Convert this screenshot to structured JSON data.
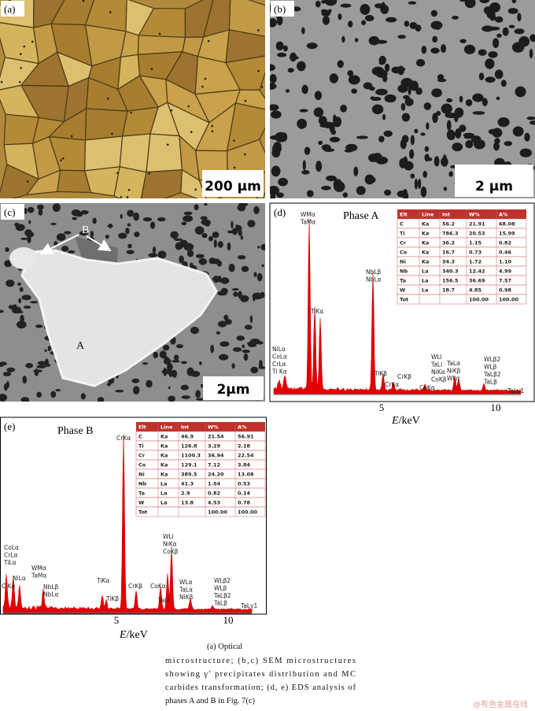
{
  "panels": {
    "a": {
      "label": "(a)",
      "scale_bar": "200 μm"
    },
    "b": {
      "label": "(b)",
      "scale_bar": "2 μm"
    },
    "c": {
      "label": "(c)",
      "scale_bar": "2μm",
      "annotations": [
        "B",
        "A"
      ]
    },
    "d": {
      "label": "(d)",
      "title": "Phase A",
      "table": {
        "header": [
          "Elt",
          "Line",
          "Int",
          "W%",
          "A%"
        ],
        "rows": [
          [
            "C",
            "Ka",
            "56.2",
            "21.91",
            "68.08"
          ],
          [
            "Ti",
            "Ka",
            "786.3",
            "20.53",
            "15.99"
          ],
          [
            "Cr",
            "Ka",
            "36.2",
            "1.15",
            "0.82"
          ],
          [
            "Co",
            "Ka",
            "16.7",
            "0.73",
            "0.46"
          ],
          [
            "Ni",
            "Ka",
            "34.3",
            "1.72",
            "1.10"
          ],
          [
            "Nb",
            "La",
            "340.3",
            "12.42",
            "4.99"
          ],
          [
            "Ta",
            "La",
            "156.5",
            "36.69",
            "7.57"
          ],
          [
            "W",
            "La",
            "18.7",
            "4.85",
            "0.98"
          ]
        ],
        "total": {
          "label": "Tot",
          "w": "100.00",
          "a": "100.00"
        }
      },
      "peaks": [
        [
          "WMα",
          "TaMα"
        ],
        [
          "TiKα"
        ],
        [
          "NbLβ",
          "NbLα"
        ],
        [
          "NiLα",
          "CoLα",
          "CrLα",
          "Ti Kα"
        ],
        [
          "TiKβ"
        ],
        [
          "CrKα"
        ],
        [
          "CrKβ"
        ],
        [
          "CoKα"
        ],
        [
          "WLl",
          "TaLl",
          "NiKα",
          "CoKβ"
        ],
        [
          "TaLα",
          "NiKβ",
          "WLα"
        ],
        [
          "WLβ2",
          "WLβ",
          "TaLβ2",
          "TaLβ"
        ],
        [
          "TaLγ1"
        ]
      ],
      "x_ticks": [
        "5",
        "10"
      ],
      "x_label": {
        "symbol": "E",
        "unit": "/keV"
      }
    },
    "e": {
      "label": "(e)",
      "title": "Phase B",
      "table": {
        "header": [
          "Elt",
          "Line",
          "Int",
          "W%",
          "A%"
        ],
        "rows": [
          [
            "C",
            "Ka",
            "46.9",
            "21.54",
            "56.91"
          ],
          [
            "Ti",
            "Ka",
            "126.8",
            "3.29",
            "2.18"
          ],
          [
            "Cr",
            "Ka",
            "1100.3",
            "36.94",
            "22.54"
          ],
          [
            "Co",
            "Ka",
            "129.1",
            "7.12",
            "3.84"
          ],
          [
            "Ni",
            "Ka",
            "389.5",
            "24.20",
            "13.08"
          ],
          [
            "Nb",
            "La",
            "41.3",
            "1.54",
            "0.53"
          ],
          [
            "Ta",
            "La",
            "2.9",
            "0.82",
            "0.14"
          ],
          [
            "W",
            "La",
            "13.8",
            "4.53",
            "0.78"
          ]
        ],
        "total": {
          "label": "Tot",
          "w": "100.00",
          "a": "100.00"
        }
      },
      "peaks": [
        [
          "CoLα",
          "CrLα",
          "TiLα"
        ],
        [
          "NiLα"
        ],
        [
          "C Kα"
        ],
        [
          "WMα",
          "TaMα"
        ],
        [
          "NbLβ",
          "NbLα"
        ],
        [
          "CrKα"
        ],
        [
          "TiKα"
        ],
        [
          "TiKβ"
        ],
        [
          "CrKβ"
        ],
        [
          "WLl",
          "NiKα",
          "CoKβ"
        ],
        [
          "CoKα"
        ],
        [
          "TaLl"
        ],
        [
          "WLα",
          "TaLα",
          "NiKβ"
        ],
        [
          "WLβ2",
          "WLβ",
          "TaLβ2",
          "TaLβ"
        ],
        [
          "TaLγ1"
        ]
      ],
      "x_ticks": [
        "5",
        "10"
      ],
      "x_label": {
        "symbol": "E",
        "unit": "/keV"
      }
    }
  },
  "caption": [
    "(a) Optical",
    "microstructure; (b,c) SEM microstructures",
    "showing γ′ precipitates distribution and MC",
    "carbides transformation; (d, e) EDS analysis of",
    "phases A and B in Fig. 7(c)"
  ],
  "watermark": "@有色金属在线"
}
